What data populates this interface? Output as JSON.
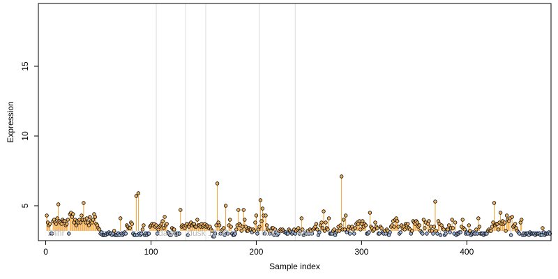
{
  "chart_data": {
    "type": "scatter",
    "title": "",
    "xlabel": "Sample index",
    "ylabel": "Expression",
    "xlim": [
      -7,
      480
    ],
    "ylim": [
      2.5,
      19.5
    ],
    "x_ticks": [
      0,
      100,
      200,
      300,
      400
    ],
    "y_ticks": [
      5,
      10,
      15
    ],
    "grid": false,
    "baseline": 3.2,
    "colors": {
      "point_fill_high": "#f2b35f",
      "point_fill_low": "#9fb7df",
      "stem_high": "#f0a030",
      "stem_low": "#9ab4e4",
      "marker_lines": "#dcdcdc",
      "marker_labels": "#b8b8b8",
      "axis": "#000000"
    },
    "markers": [
      {
        "x": 0,
        "label": "24hr"
      },
      {
        "x": 105,
        "label": "dawn"
      },
      {
        "x": 133,
        "label": "dusk"
      },
      {
        "x": 152,
        "label": "12:00"
      },
      {
        "x": 203,
        "label": "0:00"
      },
      {
        "x": 237,
        "label": "48hr"
      }
    ],
    "series": [
      {
        "x_start": 1,
        "values": [
          4.3,
          3.8,
          3.6,
          3.7,
          3.0,
          3.0,
          3.9,
          4.0,
          3.8,
          3.7,
          4.1,
          5.1,
          3.9,
          3.8,
          3.7,
          4.0,
          3.9,
          3.9,
          3.6,
          3.7,
          4.0,
          3.0,
          4.4,
          4.5,
          4.2,
          4.4,
          3.8,
          4.0,
          3.6,
          3.9,
          3.8,
          4.0,
          3.8,
          4.3,
          4.0,
          5.2,
          4.0,
          3.8,
          4.1,
          3.8,
          3.6,
          4.2,
          3.9,
          3.8,
          4.0,
          4.4,
          4.2,
          3.7,
          3.6,
          3.4,
          3.3,
          3.0,
          3.1,
          2.9,
          2.9,
          2.9,
          2.9,
          3.0,
          3.0,
          3.1,
          3.0,
          3.0,
          2.9,
          3.0,
          3.2,
          2.9,
          2.9,
          2.9,
          3.0,
          2.9,
          4.1,
          3.0,
          2.9,
          3.0,
          3.1,
          3.0,
          3.6,
          3.5,
          3.4,
          3.4,
          3.8,
          3.7,
          3.0,
          2.9,
          2.9,
          5.7,
          2.9,
          5.9,
          3.0,
          2.9,
          3.0,
          3.3,
          3.6,
          2.9,
          3.0,
          2.9,
          3.0,
          3.0,
          3.5,
          3.6,
          3.7,
          3.6,
          3.7,
          3.5,
          3.6,
          3.0,
          3.3,
          3.5,
          3.6,
          3.7,
          3.9,
          3.4,
          4.2,
          3.6,
          3.7,
          3.1,
          3.0,
          2.9,
          2.9,
          3.4,
          3.3,
          3.3,
          3.0,
          2.9,
          3.0,
          3.0,
          3.0,
          4.7,
          3.5,
          3.6,
          3.5,
          3.4,
          3.6,
          3.7,
          2.9,
          3.5,
          3.7,
          3.8,
          3.6,
          3.7,
          3.7,
          3.5,
          3.5,
          4.0,
          3.6,
          3.6,
          3.5,
          3.7,
          3.5,
          3.6,
          3.7,
          3.5,
          3.6,
          3.5,
          3.4,
          3.5,
          3.3,
          3.2,
          2.8,
          2.8,
          3.0,
          3.6,
          6.6,
          3.8,
          3.6,
          3.0,
          3.2,
          3.3,
          3.4,
          2.9,
          5.0,
          3.0,
          3.0,
          3.6,
          4.0,
          3.5,
          3.0,
          2.9,
          2.9,
          3.0,
          3.3,
          3.6,
          4.7,
          3.7,
          3.6,
          3.2,
          3.5,
          4.7,
          4.0,
          3.5,
          3.2,
          3.2,
          3.4,
          3.3,
          3.3,
          3.1,
          3.3,
          3.2,
          3.8,
          4.3,
          3.0,
          3.3,
          3.5,
          5.4,
          3.9,
          4.8,
          4.3,
          3.0,
          4.3,
          3.6,
          3.3,
          3.2,
          3.0,
          3.2,
          3.4,
          3.4,
          2.9,
          3.3,
          3.1,
          2.9,
          3.0,
          3.2,
          3.3,
          3.2,
          3.3,
          3.2,
          3.1,
          3.1,
          3.0,
          3.0,
          3.3,
          3.2,
          3.1,
          3.0,
          3.1,
          3.3,
          3.0,
          3.2,
          3.3,
          3.4,
          3.0,
          3.2,
          4.1,
          3.3,
          2.9,
          3.0,
          3.0,
          3.0,
          3.2,
          3.0,
          3.3,
          3.2,
          3.0,
          3.3,
          3.4,
          3.5,
          3.7,
          3.3,
          2.9,
          3.1,
          3.6,
          3.8,
          3.4,
          4.6,
          3.2,
          3.8,
          3.4,
          3.3,
          4.1,
          3.0,
          3.0,
          3.0,
          3.2,
          3.3,
          2.9,
          3.1,
          3.2,
          3.5,
          3.2,
          3.6,
          7.1,
          3.3,
          4.0,
          3.3,
          4.3,
          3.1,
          3.3,
          3.5,
          3.0,
          3.4,
          3.5,
          3.3,
          3.0,
          3.4,
          3.7,
          3.8,
          3.7,
          3.9,
          3.3,
          3.7,
          3.9,
          3.5,
          3.7,
          3.6,
          3.0,
          3.0,
          3.1,
          4.5,
          3.5,
          3.4,
          3.2,
          3.3,
          3.8,
          3.5,
          3.4,
          3.0,
          3.0,
          3.5,
          3.4,
          3.1,
          3.0,
          3.2,
          3.0,
          3.3,
          3.2,
          2.9,
          3.1,
          3.5,
          3.6,
          3.9,
          3.5,
          4.0,
          4.1,
          3.9,
          3.5,
          3.0,
          3.1,
          3.6,
          3.4,
          3.5,
          3.3,
          3.7,
          3.6,
          3.7,
          3.4,
          3.3,
          3.0,
          3.2,
          3.9,
          3.8,
          3.7,
          3.9,
          3.8,
          3.5,
          3.6,
          3.2,
          3.1,
          3.0,
          4.0,
          3.4,
          3.8,
          3.0,
          3.7,
          3.9,
          3.2,
          3.5,
          3.2,
          3.0,
          3.5,
          5.3,
          3.2,
          3.0,
          3.9,
          3.7,
          2.9,
          3.6,
          3.4,
          3.3,
          2.9,
          3.0,
          3.3,
          3.3,
          3.6,
          3.1,
          3.4,
          4.0,
          3.4,
          3.0,
          3.8,
          2.9,
          3.0,
          3.0,
          3.1,
          3.1,
          3.5,
          4.0,
          3.4,
          3.3,
          3.0,
          3.1,
          3.0,
          3.6,
          3.2,
          2.9,
          3.0,
          3.1,
          3.0,
          3.0,
          3.3,
          3.0,
          4.1,
          3.5,
          3.0,
          3.0,
          3.0,
          2.9,
          3.0,
          3.0,
          3.0,
          3.2,
          3.3,
          3.2,
          3.2,
          3.5,
          3.8,
          5.2,
          3.6,
          3.7,
          3.7,
          3.3,
          3.8,
          4.5,
          3.7,
          3.9,
          3.7,
          3.8,
          3.2,
          4.3,
          4.0,
          3.9,
          4.1,
          2.9,
          4.2,
          3.5,
          3.6,
          3.7,
          3.4,
          3.2,
          3.1,
          3.0,
          3.8,
          4.0,
          2.9,
          3.0,
          2.9,
          3.0,
          3.0,
          3.0,
          2.9,
          3.1,
          3.0,
          3.0,
          3.0,
          3.0,
          2.9,
          3.0,
          3.0,
          3.0,
          3.0,
          2.9,
          2.9,
          3.4,
          3.1,
          2.9,
          3.0,
          3.0,
          3.0,
          3.1,
          3.0
        ]
      }
    ]
  }
}
